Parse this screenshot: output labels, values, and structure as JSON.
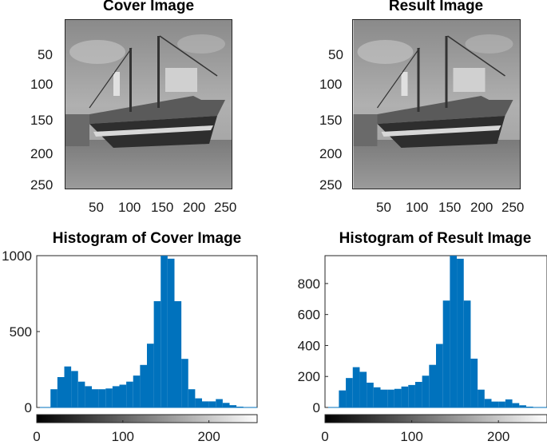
{
  "figure": {
    "panels": [
      {
        "title": "Cover Image",
        "x_ticks": [
          "50",
          "100",
          "150",
          "200",
          "250"
        ],
        "y_ticks": [
          "50",
          "100",
          "150",
          "200",
          "250"
        ]
      },
      {
        "title": "Result Image",
        "x_ticks": [
          "50",
          "100",
          "150",
          "200",
          "250"
        ],
        "y_ticks": [
          "50",
          "100",
          "150",
          "200",
          "250"
        ]
      }
    ]
  },
  "chart_data": [
    {
      "type": "histogram",
      "title": "Histogram of Cover Image",
      "xlabel": "",
      "ylabel": "",
      "xlim": [
        0,
        256
      ],
      "ylim": [
        0,
        1000
      ],
      "x_ticks": [
        "0",
        "100",
        "200"
      ],
      "y_ticks": [
        "0",
        "500",
        "1000"
      ],
      "bar_color": "#0072BD",
      "colorbar": "grayscale 0-255",
      "bins": [
        0,
        8,
        16,
        24,
        32,
        40,
        48,
        56,
        64,
        72,
        80,
        88,
        96,
        104,
        112,
        120,
        128,
        136,
        144,
        152,
        160,
        168,
        176,
        184,
        192,
        200,
        208,
        216,
        224,
        232,
        240,
        248
      ],
      "values": [
        0,
        0,
        120,
        200,
        270,
        240,
        170,
        140,
        120,
        120,
        125,
        140,
        150,
        170,
        210,
        280,
        420,
        700,
        1000,
        980,
        700,
        320,
        120,
        60,
        40,
        40,
        55,
        30,
        15,
        5,
        0,
        0
      ]
    },
    {
      "type": "histogram",
      "title": "Histogram of Result Image",
      "xlabel": "",
      "ylabel": "",
      "xlim": [
        0,
        256
      ],
      "ylim": [
        0,
        980
      ],
      "x_ticks": [
        "0",
        "100",
        "200"
      ],
      "y_ticks": [
        "0",
        "200",
        "400",
        "600",
        "800"
      ],
      "bar_color": "#0072BD",
      "colorbar": "grayscale 0-255",
      "bins": [
        0,
        8,
        16,
        24,
        32,
        40,
        48,
        56,
        64,
        72,
        80,
        88,
        96,
        104,
        112,
        120,
        128,
        136,
        144,
        152,
        160,
        168,
        176,
        184,
        192,
        200,
        208,
        216,
        224,
        232,
        240,
        248
      ],
      "values": [
        0,
        0,
        110,
        190,
        260,
        230,
        160,
        130,
        115,
        115,
        120,
        135,
        145,
        165,
        205,
        275,
        410,
        690,
        980,
        960,
        690,
        315,
        115,
        55,
        38,
        38,
        52,
        28,
        14,
        5,
        0,
        0
      ]
    }
  ]
}
